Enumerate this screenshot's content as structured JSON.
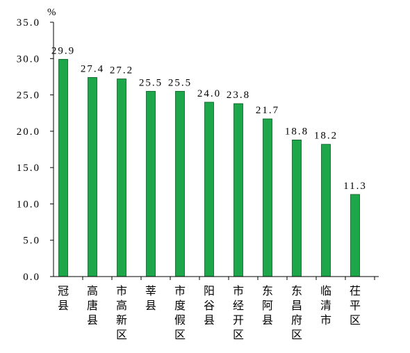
{
  "chart_data": {
    "type": "bar",
    "unit": "%",
    "categories": [
      "冠县",
      "高唐县",
      "市高新区",
      "莘县",
      "市度假区",
      "阳谷县",
      "市经开区",
      "东阿县",
      "东昌府区",
      "临清市",
      "茌平区"
    ],
    "values": [
      29.9,
      27.4,
      27.2,
      25.5,
      25.5,
      24.0,
      23.8,
      21.7,
      18.8,
      18.2,
      11.3
    ],
    "value_labels": [
      "29.9",
      "27.4",
      "27.2",
      "25.5",
      "25.5",
      "24.0",
      "23.8",
      "21.7",
      "18.8",
      "18.2",
      "11.3"
    ],
    "y_ticks": [
      "0.0",
      "5.0",
      "10.0",
      "15.0",
      "20.0",
      "25.0",
      "30.0",
      "35.0"
    ],
    "ylim": [
      0,
      35
    ],
    "grid": false,
    "colors": {
      "bar": "#1ea64a",
      "bar_stroke": "#0b5a22",
      "axis": "#000000"
    }
  }
}
